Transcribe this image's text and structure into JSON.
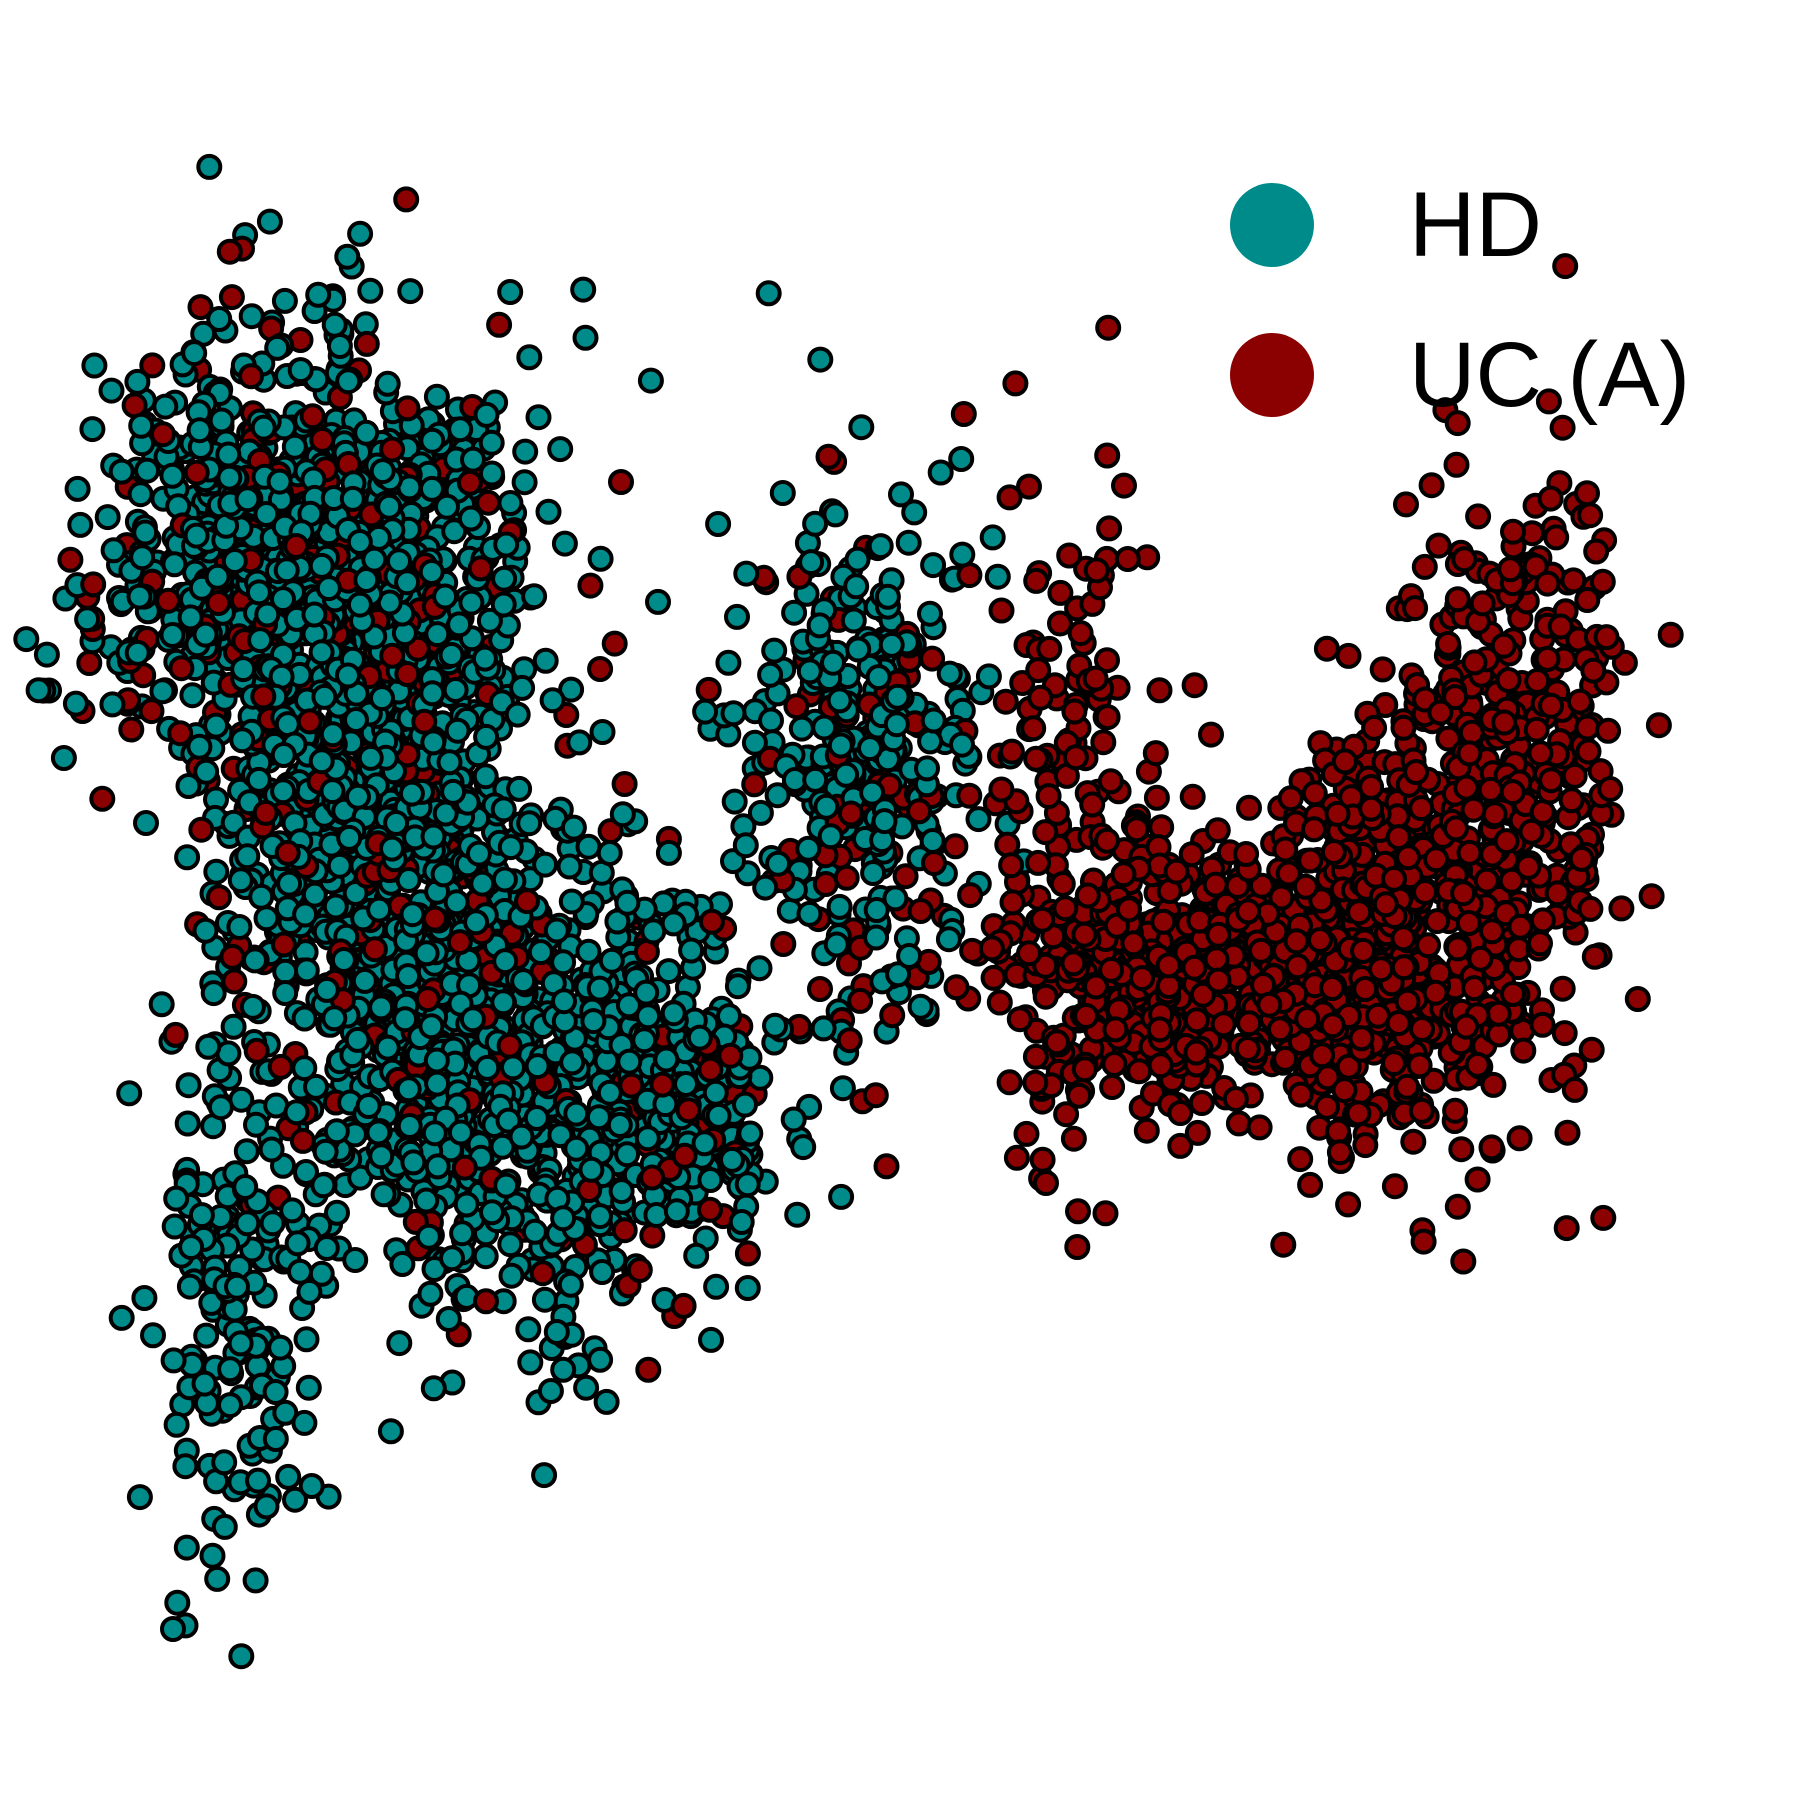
{
  "chart_data": {
    "type": "scatter",
    "title": "",
    "xlabel": "",
    "ylabel": "",
    "axes_visible": false,
    "grid": false,
    "legend_position": "top-right",
    "series": [
      {
        "name": "HD",
        "color": "#008B8B",
        "clusters": [
          {
            "cx": 2.5,
            "cy": 8.6,
            "sx": 1.2,
            "sy": 0.9,
            "n": 1100,
            "mix_share": 0.78
          },
          {
            "cx": 3.1,
            "cy": 6.2,
            "sx": 0.9,
            "sy": 1.0,
            "n": 650,
            "mix_share": 0.85
          },
          {
            "cx": 4.8,
            "cy": 4.4,
            "sx": 1.2,
            "sy": 0.9,
            "n": 900,
            "mix_share": 0.88
          },
          {
            "cx": 8.6,
            "cy": 7.0,
            "sx": 0.7,
            "sy": 1.1,
            "n": 380,
            "mix_share": 0.75
          },
          {
            "cx": 1.6,
            "cy": 2.5,
            "sx": 0.4,
            "sy": 0.9,
            "n": 160,
            "mix_share": 1.0
          }
        ]
      },
      {
        "name": "UC (A)",
        "color": "#8B0000",
        "clusters": [
          {
            "cx": 12.0,
            "cy": 5.3,
            "sx": 0.8,
            "sy": 0.5,
            "n": 500,
            "mix_share": 1.0
          },
          {
            "cx": 14.2,
            "cy": 5.6,
            "sx": 0.7,
            "sy": 0.8,
            "n": 550,
            "mix_share": 1.0
          },
          {
            "cx": 15.8,
            "cy": 6.8,
            "sx": 0.6,
            "sy": 1.2,
            "n": 420,
            "mix_share": 1.0
          },
          {
            "cx": 11.0,
            "cy": 6.5,
            "sx": 0.5,
            "sy": 1.4,
            "n": 160,
            "mix_share": 1.0
          },
          {
            "cx": 6.8,
            "cy": 4.2,
            "sx": 0.4,
            "sy": 0.5,
            "n": 140,
            "mix_share": 0.3
          }
        ]
      }
    ]
  },
  "legend": {
    "items": [
      {
        "label": "HD",
        "color": "#008B8B"
      },
      {
        "label": "UC (A)",
        "color": "#8B0000"
      }
    ]
  }
}
